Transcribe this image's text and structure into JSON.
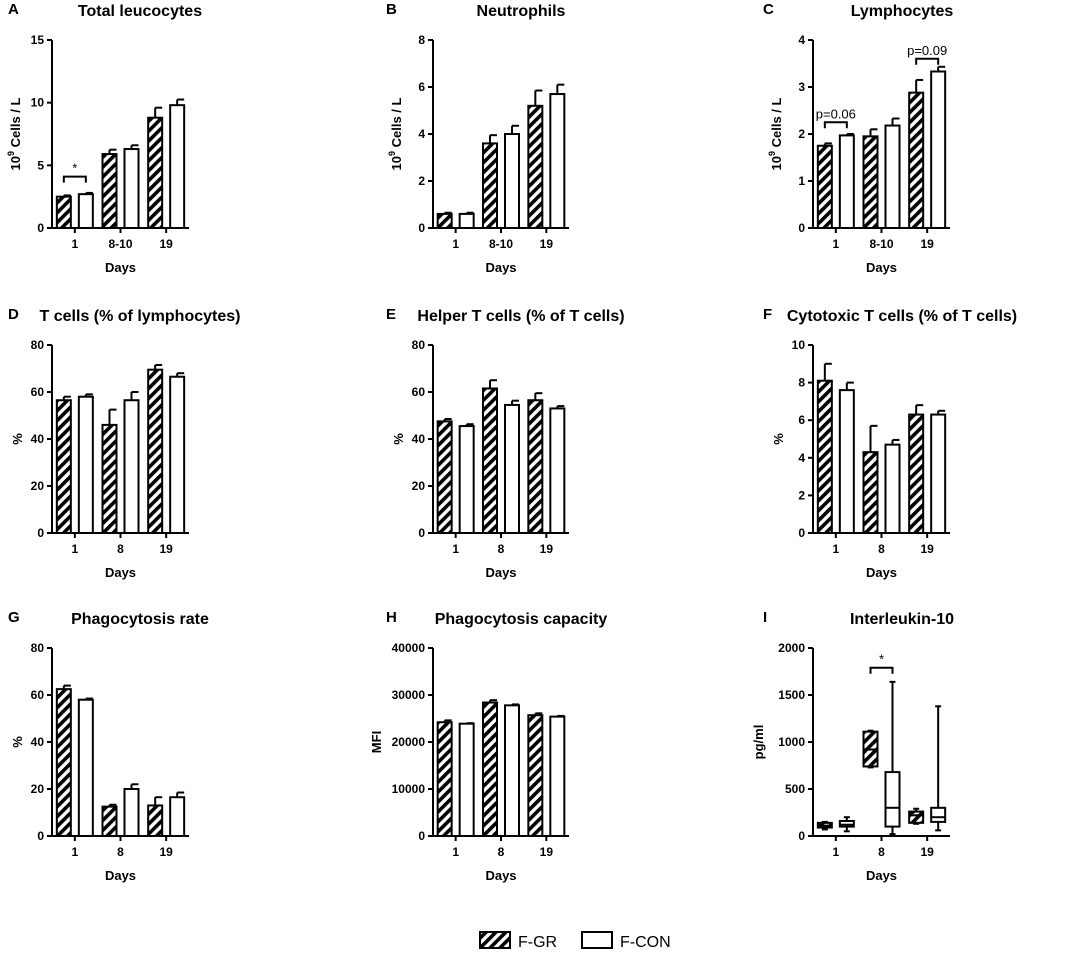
{
  "colors": {
    "ink": "#000000",
    "bar_fill_con": "#ffffff"
  },
  "legend": {
    "items": [
      {
        "label": "F-GR",
        "pattern": "hatched"
      },
      {
        "label": "F-CON",
        "pattern": "open"
      }
    ]
  },
  "chart_data": [
    {
      "letter": "A",
      "type": "bar",
      "title": "Total leucocytes",
      "xlabel": "Days",
      "ylabel": "10^9 Cells / L",
      "ylim": [
        0,
        15
      ],
      "yticks": [
        0,
        5,
        10,
        15
      ],
      "categories": [
        "1",
        "8-10",
        "19"
      ],
      "series": [
        {
          "name": "F-GR",
          "values": [
            2.5,
            5.9,
            8.8
          ],
          "errors": [
            0.1,
            0.35,
            0.8
          ]
        },
        {
          "name": "F-CON",
          "values": [
            2.7,
            6.3,
            9.8
          ],
          "errors": [
            0.1,
            0.3,
            0.45
          ]
        }
      ],
      "annotations": [
        {
          "category": 0,
          "text": "*",
          "y": 4.1
        }
      ]
    },
    {
      "letter": "B",
      "type": "bar",
      "title": "Neutrophils",
      "xlabel": "Days",
      "ylabel": "10^9 Cells / L",
      "ylim": [
        0,
        8
      ],
      "yticks": [
        0,
        2,
        4,
        6,
        8
      ],
      "categories": [
        "1",
        "8-10",
        "19"
      ],
      "series": [
        {
          "name": "F-GR",
          "values": [
            0.6,
            3.6,
            5.2
          ],
          "errors": [
            0.05,
            0.35,
            0.65
          ]
        },
        {
          "name": "F-CON",
          "values": [
            0.6,
            4.0,
            5.7
          ],
          "errors": [
            0.05,
            0.35,
            0.4
          ]
        }
      ],
      "annotations": []
    },
    {
      "letter": "C",
      "type": "bar",
      "title": "Lymphocytes",
      "xlabel": "Days",
      "ylabel": "10^9 Cells / L",
      "ylim": [
        0,
        4
      ],
      "yticks": [
        0,
        1,
        2,
        3,
        4
      ],
      "categories": [
        "1",
        "8-10",
        "19"
      ],
      "series": [
        {
          "name": "F-GR",
          "values": [
            1.75,
            1.95,
            2.88
          ],
          "errors": [
            0.05,
            0.15,
            0.27
          ]
        },
        {
          "name": "F-CON",
          "values": [
            1.97,
            2.18,
            3.33
          ],
          "errors": [
            0.03,
            0.15,
            0.1
          ]
        }
      ],
      "annotations": [
        {
          "category": 0,
          "text": "p=0.06",
          "y": 2.25
        },
        {
          "category": 2,
          "text": "p=0.09",
          "y": 3.6
        }
      ]
    },
    {
      "letter": "D",
      "type": "bar",
      "title": "T cells (% of lymphocytes)",
      "xlabel": "Days",
      "ylabel": "%",
      "ylim": [
        0,
        80
      ],
      "yticks": [
        0,
        20,
        40,
        60,
        80
      ],
      "categories": [
        "1",
        "8",
        "19"
      ],
      "series": [
        {
          "name": "F-GR",
          "values": [
            56.5,
            46.0,
            69.5
          ],
          "errors": [
            1.5,
            6.5,
            2.0
          ]
        },
        {
          "name": "F-CON",
          "values": [
            58.0,
            56.5,
            66.5
          ],
          "errors": [
            1.0,
            3.5,
            1.5
          ]
        }
      ],
      "annotations": []
    },
    {
      "letter": "E",
      "type": "bar",
      "title": "Helper T cells (% of T cells)",
      "xlabel": "Days",
      "ylabel": "%",
      "ylim": [
        0,
        80
      ],
      "yticks": [
        0,
        20,
        40,
        60,
        80
      ],
      "categories": [
        "1",
        "8",
        "19"
      ],
      "series": [
        {
          "name": "F-GR",
          "values": [
            47.5,
            61.5,
            56.5
          ],
          "errors": [
            1.0,
            3.5,
            3.0
          ]
        },
        {
          "name": "F-CON",
          "values": [
            45.5,
            54.5,
            53.0
          ],
          "errors": [
            0.8,
            1.8,
            1.0
          ]
        }
      ],
      "annotations": []
    },
    {
      "letter": "F",
      "type": "bar",
      "title": "Cytotoxic T cells (% of T cells)",
      "xlabel": "Days",
      "ylabel": "%",
      "ylim": [
        0,
        10
      ],
      "yticks": [
        0,
        2,
        4,
        6,
        8,
        10
      ],
      "categories": [
        "1",
        "8",
        "19"
      ],
      "series": [
        {
          "name": "F-GR",
          "values": [
            8.1,
            4.3,
            6.3
          ],
          "errors": [
            0.9,
            1.4,
            0.5
          ]
        },
        {
          "name": "F-CON",
          "values": [
            7.6,
            4.7,
            6.3
          ],
          "errors": [
            0.4,
            0.25,
            0.2
          ]
        }
      ],
      "annotations": []
    },
    {
      "letter": "G",
      "type": "bar",
      "title": "Phagocytosis rate",
      "xlabel": "Days",
      "ylabel": "%",
      "ylim": [
        0,
        80
      ],
      "yticks": [
        0,
        20,
        40,
        60,
        80
      ],
      "categories": [
        "1",
        "8",
        "19"
      ],
      "series": [
        {
          "name": "F-GR",
          "values": [
            62.5,
            12.5,
            13.0
          ],
          "errors": [
            1.5,
            0.8,
            3.5
          ]
        },
        {
          "name": "F-CON",
          "values": [
            58.0,
            20.0,
            16.5
          ],
          "errors": [
            0.5,
            2.0,
            2.0
          ]
        }
      ],
      "annotations": []
    },
    {
      "letter": "H",
      "type": "bar",
      "title": "Phagocytosis capacity",
      "xlabel": "Days",
      "ylabel": "MFI",
      "ylim": [
        0,
        40000
      ],
      "yticks": [
        0,
        10000,
        20000,
        30000,
        40000
      ],
      "categories": [
        "1",
        "8",
        "19"
      ],
      "series": [
        {
          "name": "F-GR",
          "values": [
            24200,
            28400,
            25700
          ],
          "errors": [
            400,
            500,
            400
          ]
        },
        {
          "name": "F-CON",
          "values": [
            23900,
            27800,
            25400
          ],
          "errors": [
            100,
            200,
            150
          ]
        }
      ],
      "annotations": []
    },
    {
      "letter": "I",
      "type": "box",
      "title": "Interleukin-10",
      "xlabel": "Days",
      "ylabel": "pg/ml",
      "ylim": [
        0,
        2000
      ],
      "yticks": [
        0,
        500,
        1000,
        1500,
        2000
      ],
      "categories": [
        "1",
        "8",
        "19"
      ],
      "series": [
        {
          "name": "F-GR",
          "boxes": [
            {
              "min": 70,
              "q1": 90,
              "median": 110,
              "q3": 140,
              "max": 150
            },
            {
              "min": 730,
              "q1": 740,
              "median": 920,
              "q3": 1110,
              "max": 1120
            },
            {
              "min": 130,
              "q1": 140,
              "median": 220,
              "q3": 260,
              "max": 290
            }
          ]
        },
        {
          "name": "F-CON",
          "boxes": [
            {
              "min": 50,
              "q1": 100,
              "median": 120,
              "q3": 160,
              "max": 200
            },
            {
              "min": 20,
              "q1": 100,
              "median": 300,
              "q3": 680,
              "max": 1640
            },
            {
              "min": 60,
              "q1": 150,
              "median": 200,
              "q3": 300,
              "max": 1380
            }
          ]
        }
      ],
      "annotations": [
        {
          "category": 1,
          "text": "*",
          "y": 1790
        }
      ]
    }
  ]
}
